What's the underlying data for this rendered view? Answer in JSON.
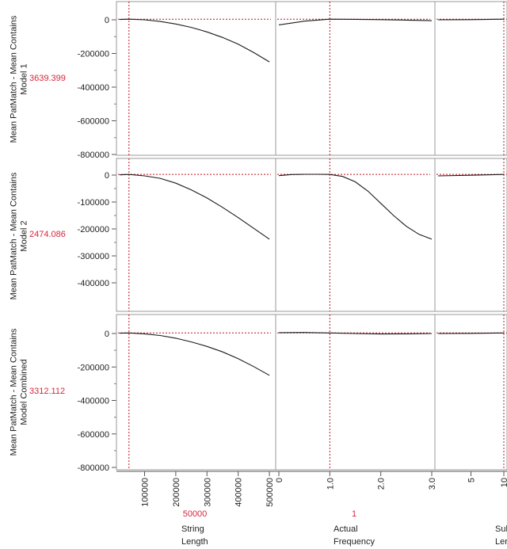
{
  "rows": [
    {
      "response": [
        "Mean PatMatch - Mean Contains",
        "Model 1"
      ],
      "current": "3639.399"
    },
    {
      "response": [
        "Mean PatMatch - Mean Contains",
        "Model 2"
      ],
      "current": "2474.086"
    },
    {
      "response": [
        "Mean PatMatch - Mean Contains",
        "Model Combined"
      ],
      "current": "3312.112"
    }
  ],
  "factors": [
    {
      "name": [
        "String",
        "Length"
      ],
      "current": "50000"
    },
    {
      "name": [
        "Actual",
        "Frequency"
      ],
      "current": "1"
    },
    {
      "name": [
        "Sul",
        "Ler"
      ],
      "current": ""
    }
  ],
  "colors": {
    "curve": "#1a1a1a",
    "crosshair": "#c4121f",
    "current_value": "#d7263d",
    "frame": "#9a9a9a"
  },
  "chart_data": [
    {
      "type": "line",
      "title": "",
      "ylabel": "Mean PatMatch - Mean Contains Model 1",
      "ylim": [
        -800000,
        0
      ],
      "yticks": [
        "0",
        "-200000",
        "-400000",
        "-600000",
        "-800000"
      ],
      "current_y": 3639.399,
      "panels": [
        {
          "factor": "String Length",
          "xlim": [
            20000,
            510000
          ],
          "current_x": 50000,
          "x": [
            20000,
            50000,
            100000,
            150000,
            200000,
            250000,
            300000,
            350000,
            400000,
            450000,
            500000
          ],
          "y": [
            2000,
            3639,
            0,
            -10000,
            -25000,
            -45000,
            -72000,
            -105000,
            -145000,
            -195000,
            -250000
          ]
        },
        {
          "factor": "Actual Frequency",
          "xlim": [
            0,
            3.0
          ],
          "current_x": 1,
          "x": [
            0,
            0.5,
            1.0,
            1.5,
            2.0,
            2.5,
            3.0
          ],
          "y": [
            -30000,
            -8000,
            3639,
            3000,
            1000,
            -2000,
            -5000
          ]
        },
        {
          "factor": "Sul Ler",
          "xlim": [
            0,
            10
          ],
          "current_x": 10,
          "x": [
            0,
            5,
            10
          ],
          "y": [
            0,
            1000,
            3639
          ]
        }
      ]
    },
    {
      "type": "line",
      "title": "",
      "ylabel": "Mean PatMatch - Mean Contains Model 2",
      "ylim": [
        -450000,
        0
      ],
      "yticks": [
        "0",
        "-100000",
        "-200000",
        "-300000",
        "-400000"
      ],
      "current_y": 2474.086,
      "panels": [
        {
          "factor": "String Length",
          "xlim": [
            20000,
            510000
          ],
          "current_x": 50000,
          "x": [
            20000,
            50000,
            100000,
            150000,
            200000,
            250000,
            300000,
            350000,
            400000,
            450000,
            500000
          ],
          "y": [
            1000,
            2474,
            -3000,
            -12000,
            -30000,
            -55000,
            -85000,
            -120000,
            -158000,
            -198000,
            -238000
          ]
        },
        {
          "factor": "Actual Frequency",
          "xlim": [
            0,
            3.0
          ],
          "current_x": 1,
          "x": [
            0,
            0.25,
            0.5,
            0.75,
            1.0,
            1.25,
            1.5,
            1.75,
            2.0,
            2.25,
            2.5,
            2.75,
            3.0
          ],
          "y": [
            -2000,
            2000,
            3000,
            3000,
            2474,
            -5000,
            -25000,
            -60000,
            -105000,
            -150000,
            -190000,
            -220000,
            -238000
          ]
        },
        {
          "factor": "Sul Ler",
          "xlim": [
            0,
            10
          ],
          "current_x": 10,
          "x": [
            0,
            5,
            10
          ],
          "y": [
            -3000,
            -500,
            2474
          ]
        }
      ]
    },
    {
      "type": "line",
      "title": "",
      "ylabel": "Mean PatMatch - Mean Contains Model Combined",
      "ylim": [
        -800000,
        0
      ],
      "yticks": [
        "0",
        "-200000",
        "-400000",
        "-600000",
        "-800000"
      ],
      "current_y": 3312.112,
      "panels": [
        {
          "factor": "String Length",
          "xlim": [
            20000,
            510000
          ],
          "current_x": 50000,
          "x": [
            20000,
            50000,
            100000,
            150000,
            200000,
            250000,
            300000,
            350000,
            400000,
            450000,
            500000
          ],
          "y": [
            2000,
            3312,
            -2000,
            -12000,
            -28000,
            -50000,
            -77000,
            -110000,
            -150000,
            -198000,
            -250000
          ]
        },
        {
          "factor": "Actual Frequency",
          "xlim": [
            0,
            3.0
          ],
          "current_x": 1,
          "x": [
            0,
            0.5,
            1.0,
            1.5,
            2.0,
            2.5,
            3.0
          ],
          "y": [
            5000,
            6000,
            3312,
            0,
            -3000,
            -2000,
            0
          ]
        },
        {
          "factor": "Sul Ler",
          "xlim": [
            0,
            10
          ],
          "current_x": 10,
          "x": [
            0,
            5,
            10
          ],
          "y": [
            0,
            1000,
            3312
          ]
        }
      ]
    }
  ],
  "x_axes": [
    {
      "xlim": [
        20000,
        510000
      ],
      "ticks": [
        {
          "v": 100000,
          "l": "100000"
        },
        {
          "v": 200000,
          "l": "200000"
        },
        {
          "v": 300000,
          "l": "300000"
        },
        {
          "v": 400000,
          "l": "400000"
        },
        {
          "v": 500000,
          "l": "500000"
        }
      ]
    },
    {
      "xlim": [
        0,
        3.0
      ],
      "ticks": [
        {
          "v": 0,
          "l": "0"
        },
        {
          "v": 1.0,
          "l": "1.0"
        },
        {
          "v": 2.0,
          "l": "2.0"
        },
        {
          "v": 3.0,
          "l": "3.0"
        }
      ]
    },
    {
      "xlim": [
        0,
        10
      ],
      "ticks": [
        {
          "v": 5,
          "l": "5"
        },
        {
          "v": 10,
          "l": "10"
        }
      ]
    }
  ]
}
